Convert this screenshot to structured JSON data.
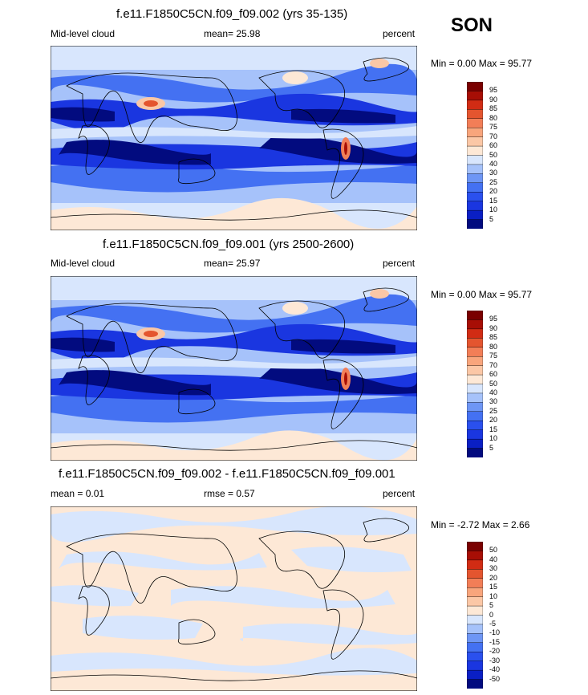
{
  "season": "SON",
  "panels": [
    {
      "title": "f.e11.F1850C5CN.f09_f09.002 (yrs 35-135)",
      "left_label": "Mid-level cloud",
      "center_label": "mean=  25.98",
      "right_label": "percent",
      "minmax": "Min =   0.00 Max =  95.77",
      "colorbar_labels": [
        "95",
        "90",
        "85",
        "80",
        "75",
        "70",
        "60",
        "50",
        "40",
        "30",
        "25",
        "20",
        "15",
        "10",
        "5"
      ]
    },
    {
      "title": "f.e11.F1850C5CN.f09_f09.001 (yrs 2500-2600)",
      "left_label": "Mid-level cloud",
      "center_label": "mean=  25.97",
      "right_label": "percent",
      "minmax": "Min =   0.00 Max =  95.77",
      "colorbar_labels": [
        "95",
        "90",
        "85",
        "80",
        "75",
        "70",
        "60",
        "50",
        "40",
        "30",
        "25",
        "20",
        "15",
        "10",
        "5"
      ]
    },
    {
      "title": "f.e11.F1850C5CN.f09_f09.002 - f.e11.F1850C5CN.f09_f09.001",
      "left_label": "mean =   0.01",
      "center_label": "rmse =   0.57",
      "right_label": "percent",
      "minmax": "Min =  -2.72 Max =   2.66",
      "colorbar_labels": [
        "50",
        "40",
        "30",
        "20",
        "15",
        "10",
        "5",
        "0",
        "-5",
        "-10",
        "-15",
        "-20",
        "-30",
        "-40",
        "-50"
      ]
    }
  ],
  "chart_data": [
    {
      "type": "heatmap",
      "title": "f.e11.F1850C5CN.f09_f09.002 (yrs 35-135)",
      "variable": "Mid-level cloud",
      "units": "percent",
      "mean": 25.98,
      "min": 0.0,
      "max": 95.77,
      "levels": [
        5,
        10,
        15,
        20,
        25,
        30,
        40,
        50,
        60,
        70,
        75,
        80,
        85,
        90,
        95
      ],
      "colors": [
        "#020b7f",
        "#0a1fc4",
        "#1a36e0",
        "#2a50ee",
        "#4471f2",
        "#6e96f5",
        "#a6c2fa",
        "#d8e6fd",
        "#fde8d6",
        "#fbc7a6",
        "#f8a57c",
        "#f27e57",
        "#e4552f",
        "#d12c14",
        "#a70e05",
        "#7a0000"
      ]
    },
    {
      "type": "heatmap",
      "title": "f.e11.F1850C5CN.f09_f09.001 (yrs 2500-2600)",
      "variable": "Mid-level cloud",
      "units": "percent",
      "mean": 25.97,
      "min": 0.0,
      "max": 95.77,
      "levels": [
        5,
        10,
        15,
        20,
        25,
        30,
        40,
        50,
        60,
        70,
        75,
        80,
        85,
        90,
        95
      ],
      "colors": [
        "#020b7f",
        "#0a1fc4",
        "#1a36e0",
        "#2a50ee",
        "#4471f2",
        "#6e96f5",
        "#a6c2fa",
        "#d8e6fd",
        "#fde8d6",
        "#fbc7a6",
        "#f8a57c",
        "#f27e57",
        "#e4552f",
        "#d12c14",
        "#a70e05",
        "#7a0000"
      ]
    },
    {
      "type": "heatmap",
      "title": "f.e11.F1850C5CN.f09_f09.002 - f.e11.F1850C5CN.f09_f09.001",
      "units": "percent",
      "mean": 0.01,
      "rmse": 0.57,
      "min": -2.72,
      "max": 2.66,
      "levels": [
        -50,
        -40,
        -30,
        -20,
        -15,
        -10,
        -5,
        0,
        5,
        10,
        15,
        20,
        30,
        40,
        50
      ],
      "colors": [
        "#020b7f",
        "#0a1fc4",
        "#1a36e0",
        "#2a50ee",
        "#4471f2",
        "#6e96f5",
        "#a6c2fa",
        "#d8e6fd",
        "#fde8d6",
        "#fbc7a6",
        "#f8a57c",
        "#f27e57",
        "#e4552f",
        "#d12c14",
        "#a70e05",
        "#7a0000"
      ]
    }
  ],
  "colors": {
    "ocean_low": "#020b7f",
    "land_line": "#000000",
    "neutral_blue": "#d8e6fd",
    "neutral_red": "#fde8d6"
  }
}
